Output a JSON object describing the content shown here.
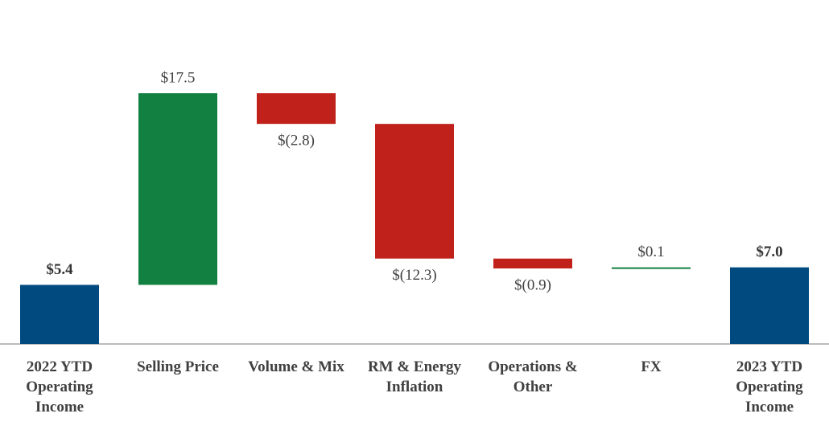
{
  "chart_data": {
    "type": "waterfall",
    "categories": [
      "2022 YTD Operating Income",
      "Selling Price",
      "Volume & Mix",
      "RM & Energy Inflation",
      "Operations & Other",
      "FX",
      "2023 YTD Operating Income"
    ],
    "values": [
      5.4,
      17.5,
      -2.8,
      -12.3,
      -0.9,
      0.1,
      7.0
    ],
    "value_labels": [
      "$5.4",
      "$17.5",
      "$(2.8)",
      "$(12.3)",
      "$(0.9)",
      "$0.1",
      "$7.0"
    ],
    "colors": [
      "#004a80",
      "#128040",
      "#c0221b",
      "#c0221b",
      "#c0221b",
      "#128040",
      "#004a80"
    ]
  }
}
